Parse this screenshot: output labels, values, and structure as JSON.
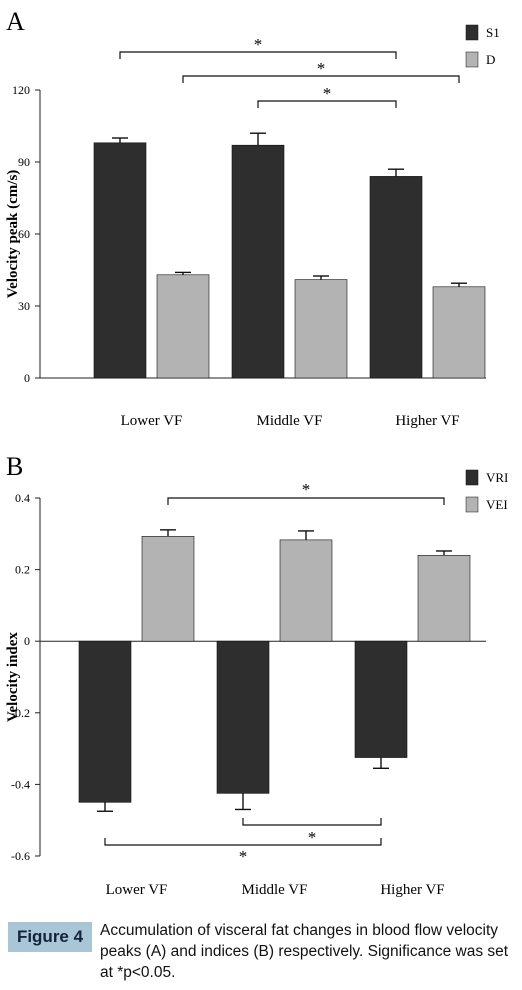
{
  "colors": {
    "dark": "#2e2e2e",
    "light": "#b3b3b3",
    "caption_bg": "#a9c6d6"
  },
  "chart_data": [
    {
      "type": "bar",
      "panel_label": "A",
      "categories": [
        "Lower VF",
        "Middle VF",
        "Higher VF"
      ],
      "series": [
        {
          "name": "S1",
          "values": [
            98,
            97,
            84
          ],
          "errors": [
            2,
            5,
            3
          ]
        },
        {
          "name": "D",
          "values": [
            43,
            41,
            38
          ],
          "errors": [
            1,
            1.5,
            1.5
          ]
        }
      ],
      "ylabel": "Velocity peak (cm/s)",
      "ylim": [
        0,
        120
      ],
      "yticks": [
        0,
        30,
        60,
        90,
        120
      ],
      "ytick_labels": [
        "0",
        "30",
        "60",
        "90",
        "120"
      ],
      "legend_position": "top-right",
      "significance": [
        {
          "from": "Lower VF.S1",
          "to": "Higher VF.S1",
          "label": "*"
        },
        {
          "from": "Lower VF.D",
          "to": "Higher VF.D",
          "label": "*"
        },
        {
          "from": "Middle VF.S1",
          "to": "Higher VF.S1",
          "label": "*"
        }
      ]
    },
    {
      "type": "bar",
      "panel_label": "B",
      "categories": [
        "Lower VF",
        "Middle VF",
        "Higher VF"
      ],
      "series": [
        {
          "name": "VRI",
          "values": [
            -0.45,
            -0.425,
            -0.325
          ],
          "errors": [
            0.025,
            0.045,
            0.03
          ]
        },
        {
          "name": "VEI",
          "values": [
            0.293,
            0.283,
            0.24
          ],
          "errors": [
            0.018,
            0.025,
            0.012
          ]
        }
      ],
      "ylabel": "Velocity index",
      "ylim": [
        -0.6,
        0.4
      ],
      "yticks": [
        -0.6,
        -0.4,
        -0.2,
        0,
        0.2,
        0.4
      ],
      "ytick_labels": [
        "-0.6",
        "-0.4",
        "-0.2",
        "0",
        "0.2",
        "0.4"
      ],
      "legend_position": "top-right",
      "significance": [
        {
          "from": "Lower VF.VEI",
          "to": "Higher VF.VEI",
          "label": "*"
        },
        {
          "from": "Middle VF.VRI",
          "to": "Higher VF.VRI",
          "label": "*"
        },
        {
          "from": "Lower VF.VRI",
          "to": "Higher VF.VRI",
          "label": "*"
        }
      ]
    }
  ],
  "caption": {
    "label": "Figure 4",
    "text": "Accumulation of visceral fat changes in blood flow velocity peaks (A) and indices (B) respectively. Significance was set at *p<0.05."
  }
}
